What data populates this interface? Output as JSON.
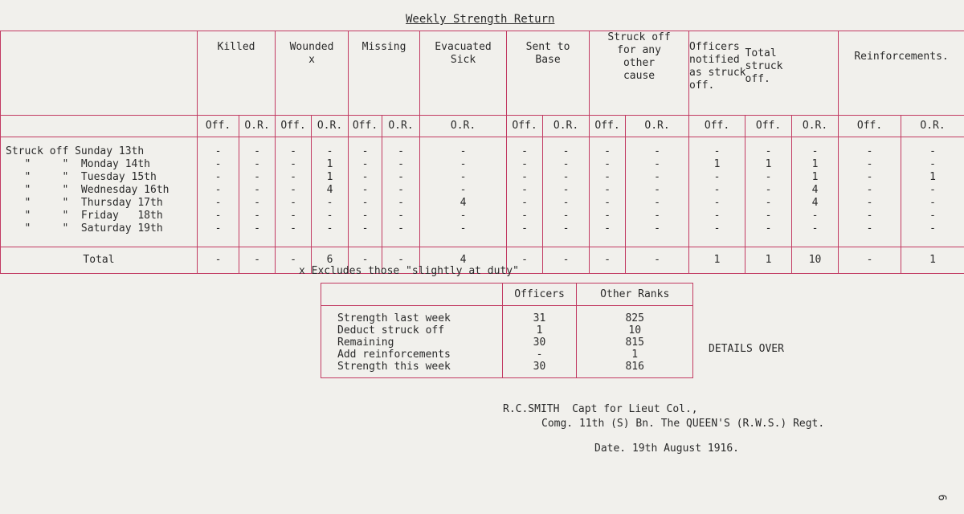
{
  "title": "Weekly Strength Return",
  "headers": {
    "killed": "Killed",
    "wounded": "Wounded\nx",
    "missing": "Missing",
    "evacuated": "Evacuated\nSick",
    "sent": "Sent to\nBase",
    "struck_other": "Struck off\nfor any\nother\ncause",
    "officers_notified": "Officers\nnotified\nas struck\noff.",
    "total_struck": "Total\nstruck\noff.",
    "reinforcements": "Reinforcements."
  },
  "subheaders": [
    "Off.",
    "O.R.",
    "Off.",
    "O.R.",
    "Off.",
    "O.R.",
    "O.R.",
    "Off.",
    "O.R.",
    "Off.",
    "O.R.",
    "Off.",
    "Off.",
    "O.R.",
    "Off.",
    "O.R."
  ],
  "rows": [
    {
      "label": "Struck off Sunday 13th",
      "values": [
        "-",
        "-",
        "-",
        "-",
        "-",
        "-",
        "-",
        "-",
        "-",
        "-",
        "-",
        "-",
        "-",
        "-",
        "-",
        "-"
      ]
    },
    {
      "label": "   \"     \"  Monday 14th",
      "values": [
        "-",
        "-",
        "-",
        "1",
        "-",
        "-",
        "-",
        "-",
        "-",
        "-",
        "-",
        "1",
        "1",
        "1",
        "-",
        "-"
      ]
    },
    {
      "label": "   \"     \"  Tuesday 15th",
      "values": [
        "-",
        "-",
        "-",
        "1",
        "-",
        "-",
        "-",
        "-",
        "-",
        "-",
        "-",
        "-",
        "-",
        "1",
        "-",
        "1"
      ]
    },
    {
      "label": "   \"     \"  Wednesday 16th",
      "values": [
        "-",
        "-",
        "-",
        "4",
        "-",
        "-",
        "-",
        "-",
        "-",
        "-",
        "-",
        "-",
        "-",
        "4",
        "-",
        "-"
      ]
    },
    {
      "label": "   \"     \"  Thursday 17th",
      "values": [
        "-",
        "-",
        "-",
        "-",
        "-",
        "-",
        "4",
        "-",
        "-",
        "-",
        "-",
        "-",
        "-",
        "4",
        "-",
        "-"
      ]
    },
    {
      "label": "   \"     \"  Friday   18th",
      "values": [
        "-",
        "-",
        "-",
        "-",
        "-",
        "-",
        "-",
        "-",
        "-",
        "-",
        "-",
        "-",
        "-",
        "-",
        "-",
        "-"
      ]
    },
    {
      "label": "   \"     \"  Saturday 19th",
      "values": [
        "-",
        "-",
        "-",
        "-",
        "-",
        "-",
        "-",
        "-",
        "-",
        "-",
        "-",
        "-",
        "-",
        "-",
        "-",
        "-"
      ]
    }
  ],
  "total": {
    "label": "Total",
    "values": [
      "-",
      "-",
      "-",
      "6",
      "-",
      "-",
      "4",
      "-",
      "-",
      "-",
      "-",
      "1",
      "1",
      "10",
      "-",
      "1"
    ]
  },
  "note": "x Excludes those \"slightly at duty\"",
  "summary": {
    "headers": [
      "Officers",
      "Other Ranks"
    ],
    "rows": [
      {
        "label": "Strength last week",
        "officers": "31",
        "other": "825"
      },
      {
        "label": "Deduct struck off",
        "officers": "1",
        "other": "10"
      },
      {
        "label": "Remaining",
        "officers": "30",
        "other": "815"
      },
      {
        "label": "Add reinforcements",
        "officers": "-",
        "other": "1"
      },
      {
        "label": "Strength this week",
        "officers": "30",
        "other": "816"
      }
    ]
  },
  "details_over": "DETAILS OVER",
  "signature": {
    "line1": "R.C.SMITH  Capt for Lieut Col.,",
    "line2": "Comg. 11th (S) Bn. The QUEEN'S (R.W.S.) Regt.",
    "date": "Date. 19th August 1916."
  },
  "page_mark": "6"
}
